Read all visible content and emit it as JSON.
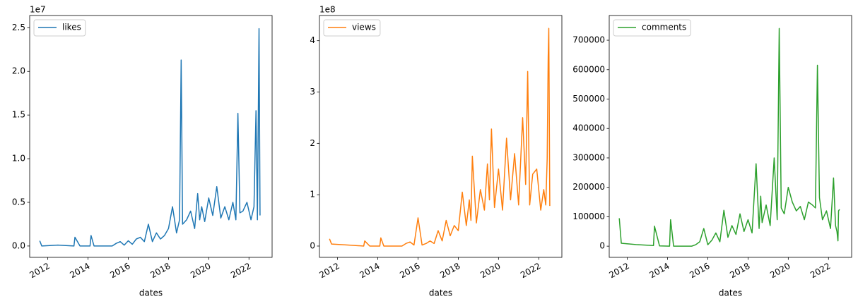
{
  "chart_data": [
    {
      "type": "line",
      "xlabel": "dates",
      "y_offset_label": "1e7",
      "legend": "upper left",
      "x": [
        2011.6,
        2011.7,
        2012.5,
        2013.3,
        2013.35,
        2013.6,
        2014.1,
        2014.15,
        2014.3,
        2015.2,
        2015.4,
        2015.6,
        2015.8,
        2016.0,
        2016.2,
        2016.4,
        2016.6,
        2016.8,
        2017.0,
        2017.2,
        2017.4,
        2017.6,
        2017.8,
        2018.0,
        2018.2,
        2018.4,
        2018.55,
        2018.63,
        2018.7,
        2018.9,
        2019.1,
        2019.3,
        2019.45,
        2019.55,
        2019.65,
        2019.8,
        2020.0,
        2020.2,
        2020.4,
        2020.6,
        2020.8,
        2021.0,
        2021.2,
        2021.35,
        2021.45,
        2021.55,
        2021.7,
        2021.9,
        2022.1,
        2022.25,
        2022.35,
        2022.42,
        2022.47,
        2022.5,
        2022.55
      ],
      "series": [
        {
          "name": "likes",
          "color": "#1f77b4",
          "values": [
            0.06,
            0.0,
            0.01,
            0.0,
            0.1,
            0.0,
            0.0,
            0.12,
            0.0,
            0.0,
            0.03,
            0.05,
            0.01,
            0.06,
            0.02,
            0.08,
            0.1,
            0.05,
            0.25,
            0.05,
            0.15,
            0.08,
            0.12,
            0.2,
            0.45,
            0.15,
            0.3,
            2.13,
            0.25,
            0.3,
            0.4,
            0.2,
            0.6,
            0.3,
            0.45,
            0.28,
            0.55,
            0.35,
            0.68,
            0.32,
            0.45,
            0.3,
            0.5,
            0.3,
            1.52,
            0.38,
            0.4,
            0.5,
            0.3,
            0.45,
            1.55,
            0.3,
            1.65,
            2.49,
            0.35
          ]
        }
      ],
      "xlim": [
        2011.1,
        2023.15
      ],
      "xticks": [
        2012,
        2014,
        2016,
        2018,
        2020,
        2022
      ],
      "ylim": [
        -0.13,
        2.64
      ],
      "yticks": [
        {
          "value": 0,
          "label": "0.0"
        },
        0.5,
        {
          "value": 1,
          "label": "1.0"
        },
        1.5,
        {
          "value": 2,
          "label": "2.0"
        },
        2.5
      ]
    },
    {
      "type": "line",
      "xlabel": "dates",
      "y_offset_label": "1e8",
      "legend": "upper left",
      "x": [
        2011.6,
        2011.7,
        2012.5,
        2013.3,
        2013.35,
        2013.6,
        2014.1,
        2014.15,
        2014.3,
        2015.2,
        2015.4,
        2015.6,
        2015.8,
        2016.0,
        2016.2,
        2016.4,
        2016.6,
        2016.8,
        2017.0,
        2017.2,
        2017.4,
        2017.6,
        2017.8,
        2018.0,
        2018.2,
        2018.4,
        2018.55,
        2018.63,
        2018.7,
        2018.9,
        2019.1,
        2019.3,
        2019.45,
        2019.55,
        2019.65,
        2019.8,
        2020.0,
        2020.2,
        2020.4,
        2020.6,
        2020.8,
        2021.0,
        2021.2,
        2021.35,
        2021.45,
        2021.55,
        2021.7,
        2021.9,
        2022.1,
        2022.25,
        2022.35,
        2022.42,
        2022.47,
        2022.5,
        2022.55
      ],
      "series": [
        {
          "name": "views",
          "color": "#ff7f0e",
          "values": [
            0.14,
            0.04,
            0.02,
            0.0,
            0.1,
            0.0,
            0.0,
            0.16,
            0.0,
            0.0,
            0.05,
            0.08,
            0.02,
            0.55,
            0.02,
            0.05,
            0.1,
            0.05,
            0.3,
            0.1,
            0.5,
            0.2,
            0.4,
            0.3,
            1.05,
            0.4,
            0.9,
            0.5,
            1.75,
            0.45,
            1.1,
            0.7,
            1.6,
            0.9,
            2.28,
            0.75,
            1.5,
            0.7,
            2.1,
            0.9,
            1.8,
            0.8,
            2.5,
            1.2,
            3.4,
            0.8,
            1.4,
            1.5,
            0.7,
            1.1,
            0.8,
            1.7,
            3.68,
            4.24,
            0.78
          ]
        }
      ],
      "xlim": [
        2011.1,
        2023.15
      ],
      "xticks": [
        2012,
        2014,
        2016,
        2018,
        2020,
        2022
      ],
      "ylim": [
        -0.22,
        4.49
      ],
      "yticks": [
        0,
        1,
        2,
        3,
        4
      ]
    },
    {
      "type": "line",
      "xlabel": "dates",
      "legend": "upper left",
      "x": [
        2011.6,
        2011.7,
        2012.5,
        2013.3,
        2013.35,
        2013.6,
        2014.1,
        2014.15,
        2014.3,
        2015.2,
        2015.4,
        2015.6,
        2015.8,
        2016.0,
        2016.2,
        2016.4,
        2016.6,
        2016.8,
        2017.0,
        2017.2,
        2017.4,
        2017.6,
        2017.8,
        2018.0,
        2018.2,
        2018.4,
        2018.55,
        2018.63,
        2018.7,
        2018.9,
        2019.1,
        2019.3,
        2019.45,
        2019.55,
        2019.65,
        2019.8,
        2020.0,
        2020.2,
        2020.4,
        2020.6,
        2020.8,
        2021.0,
        2021.2,
        2021.35,
        2021.45,
        2021.55,
        2021.7,
        2021.9,
        2022.1,
        2022.25,
        2022.35,
        2022.42,
        2022.47,
        2022.5,
        2022.55
      ],
      "series": [
        {
          "name": "comments",
          "color": "#2ca02c",
          "values": [
            95000,
            10000,
            5000,
            2000,
            68000,
            1000,
            0,
            90000,
            0,
            0,
            5000,
            15000,
            60000,
            5000,
            20000,
            45000,
            15000,
            122000,
            30000,
            70000,
            40000,
            110000,
            50000,
            90000,
            45000,
            280000,
            60000,
            170000,
            80000,
            140000,
            70000,
            300000,
            90000,
            740000,
            130000,
            110000,
            200000,
            150000,
            120000,
            135000,
            90000,
            150000,
            140000,
            130000,
            615000,
            165000,
            90000,
            120000,
            60000,
            232000,
            70000,
            50000,
            18000,
            120000,
            125000
          ]
        }
      ],
      "xlim": [
        2011.1,
        2023.15
      ],
      "xticks": [
        2012,
        2014,
        2016,
        2018,
        2020,
        2022
      ],
      "ylim": [
        -38000,
        784000
      ],
      "yticks": [
        0,
        100000,
        200000,
        300000,
        400000,
        500000,
        600000,
        700000
      ]
    }
  ]
}
